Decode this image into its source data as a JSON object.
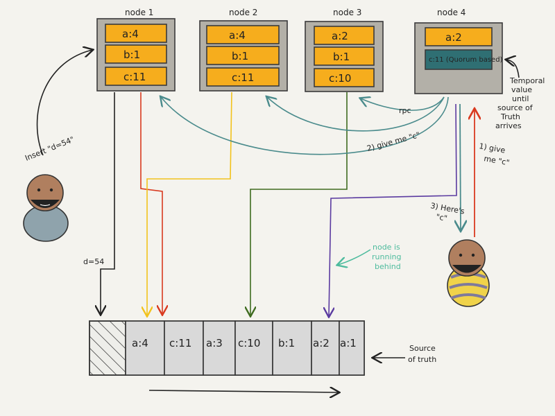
{
  "nodes": [
    {
      "title": "node 1",
      "entries": [
        "a:4",
        "b:1",
        "c:11"
      ]
    },
    {
      "title": "node 2",
      "entries": [
        "a:4",
        "b:1",
        "c:11"
      ]
    },
    {
      "title": "node 3",
      "entries": [
        "a:2",
        "b:1",
        "c:10"
      ]
    },
    {
      "title": "node 4",
      "entries": [
        "a:2",
        "c:11 (Quorum based)"
      ]
    }
  ],
  "log": {
    "entries": [
      "a:4",
      "c:11",
      "a:3",
      "c:10",
      "b:1",
      "a:2",
      "a:1"
    ],
    "label_line1": "Source",
    "label_line2": "of truth"
  },
  "annotations": {
    "insert": "Insert \"d=54\"",
    "d54": "d=54",
    "rpc": "rpc",
    "give_me_c_1": "1) give",
    "give_me_c_1b": "me \"c\"",
    "give_me_c_2": "2) give me \"c\"",
    "heres_c": "3) Here's",
    "heres_c_b": "\"c\"",
    "temporal_1": "Temporal",
    "temporal_2": "value",
    "temporal_3": "until",
    "temporal_4": "source of",
    "temporal_5": "Truth",
    "temporal_6": "arrives",
    "behind_1": "node is",
    "behind_2": "running",
    "behind_3": "behind"
  },
  "colors": {
    "node_fill": "#b3b0a8",
    "entry_fill": "#f6ad1d",
    "quorum_fill": "#2f6f73",
    "arrow_node1": "#d9391f",
    "arrow_node2": "#f2c21b",
    "arrow_node3": "#3e6b1f",
    "arrow_node4": "#5a3aa0",
    "rpc_arrows": "#4a8b8c",
    "note_teal": "#4dbb9d"
  }
}
